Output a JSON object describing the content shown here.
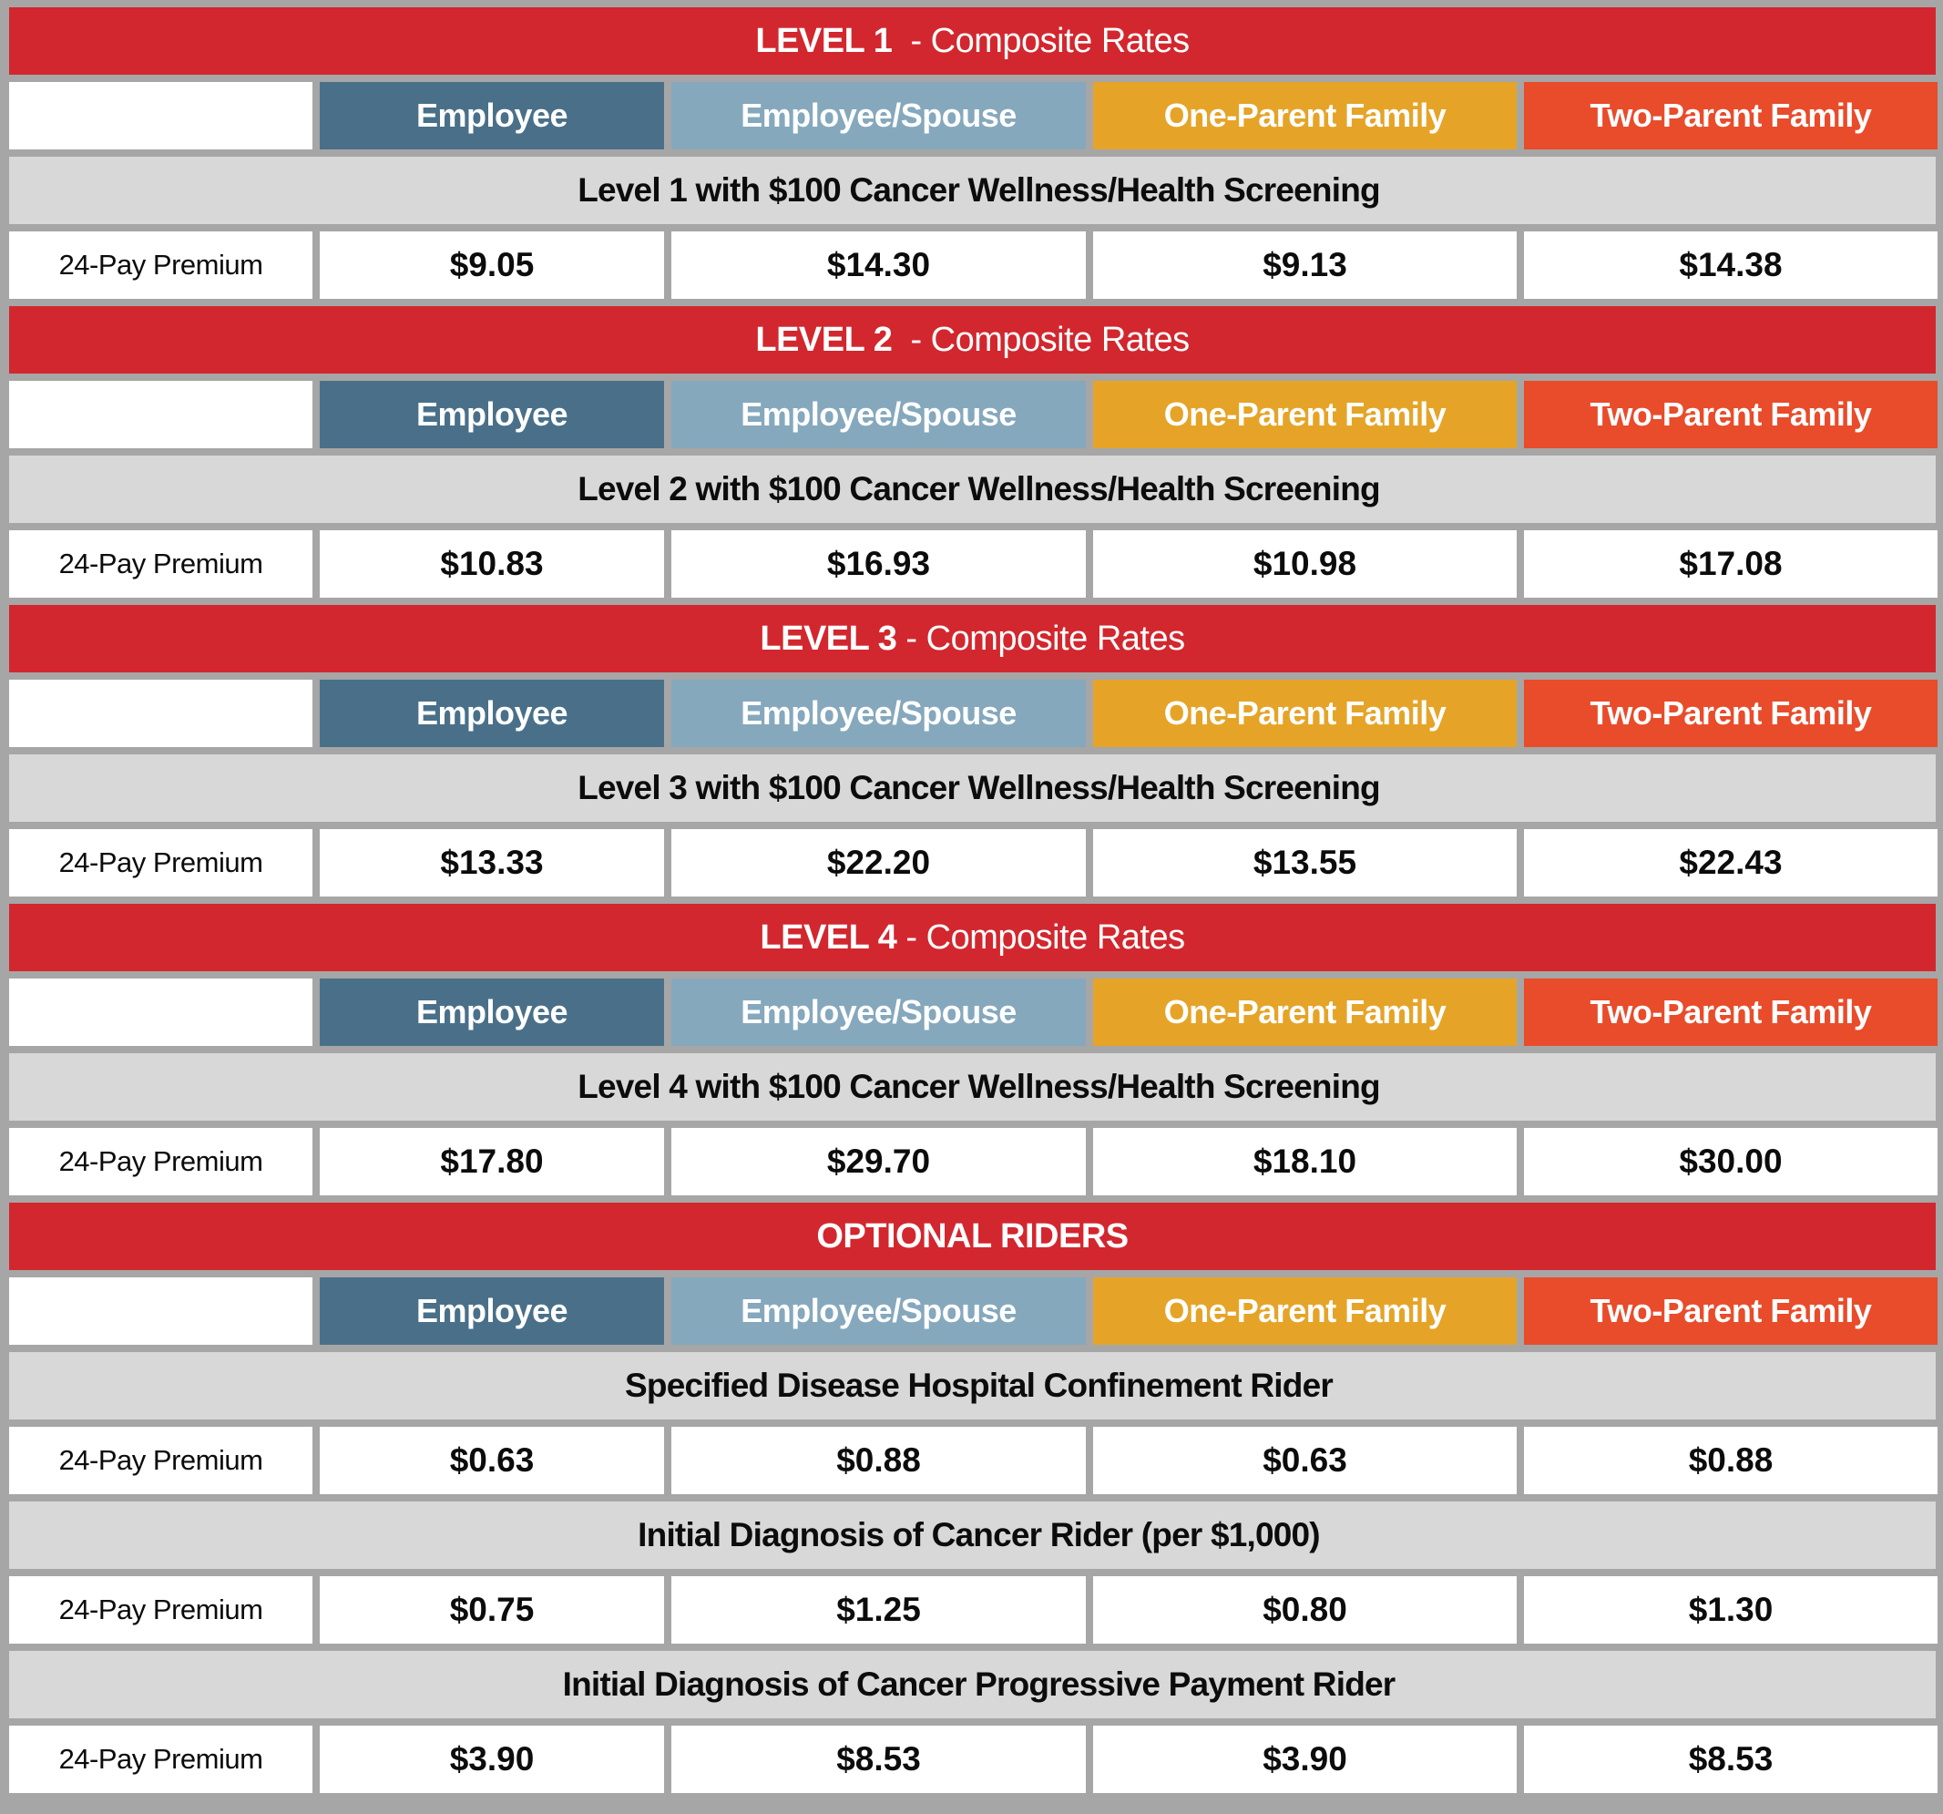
{
  "colors": {
    "page_bg": "#a6a6a6",
    "bar_red": "#d2272e",
    "employee": "#4a7089",
    "employee_spouse": "#85a8bd",
    "one_parent_family": "#e5a428",
    "two_parent_family": "#e84c2b",
    "description_gray": "#d8d8d8",
    "cell_white": "#ffffff"
  },
  "columns": [
    "Employee",
    "Employee/Spouse",
    "One-Parent Family",
    "Two-Parent Family"
  ],
  "sections": [
    {
      "title_bold": "LEVEL 1",
      "title_rest": "  - Composite Rates",
      "blocks": [
        {
          "description": "Level 1 with $100 Cancer Wellness/Health Screening",
          "label": "24-Pay Premium",
          "values": [
            "$9.05",
            "$14.30",
            "$9.13",
            "$14.38"
          ]
        }
      ]
    },
    {
      "title_bold": "LEVEL 2",
      "title_rest": "  - Composite Rates",
      "blocks": [
        {
          "description": "Level 2 with $100 Cancer Wellness/Health Screening",
          "label": "24-Pay Premium",
          "values": [
            "$10.83",
            "$16.93",
            "$10.98",
            "$17.08"
          ]
        }
      ]
    },
    {
      "title_bold": "LEVEL 3",
      "title_rest": " - Composite Rates",
      "blocks": [
        {
          "description": "Level 3 with $100 Cancer Wellness/Health Screening",
          "label": "24-Pay Premium",
          "values": [
            "$13.33",
            "$22.20",
            "$13.55",
            "$22.43"
          ]
        }
      ]
    },
    {
      "title_bold": "LEVEL 4",
      "title_rest": " - Composite Rates",
      "blocks": [
        {
          "description": "Level 4 with $100 Cancer Wellness/Health Screening",
          "label": "24-Pay Premium",
          "values": [
            "$17.80",
            "$29.70",
            "$18.10",
            "$30.00"
          ]
        }
      ]
    },
    {
      "title_bold": "OPTIONAL RIDERS",
      "title_rest": "",
      "blocks": [
        {
          "description": "Specified Disease Hospital Confinement Rider",
          "label": "24-Pay Premium",
          "values": [
            "$0.63",
            "$0.88",
            "$0.63",
            "$0.88"
          ]
        },
        {
          "description": "Initial Diagnosis of Cancer Rider (per $1,000)",
          "label": "24-Pay Premium",
          "values": [
            "$0.75",
            "$1.25",
            "$0.80",
            "$1.30"
          ]
        },
        {
          "description": "Initial Diagnosis of Cancer Progressive Payment Rider",
          "label": "24-Pay Premium",
          "values": [
            "$3.90",
            "$8.53",
            "$3.90",
            "$8.53"
          ]
        }
      ]
    }
  ]
}
